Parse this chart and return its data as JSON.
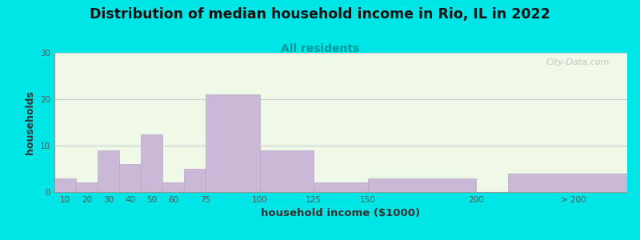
{
  "title": "Distribution of median household income in Rio, IL in 2022",
  "subtitle": "All residents",
  "xlabel": "household income ($1000)",
  "ylabel": "households",
  "bar_heights": [
    3,
    2,
    9,
    6,
    12.5,
    2,
    5,
    21,
    9,
    2,
    3,
    4
  ],
  "bar_widths": [
    10,
    10,
    10,
    10,
    10,
    15,
    15,
    25,
    25,
    25,
    50,
    60
  ],
  "bar_left": [
    5,
    15,
    25,
    35,
    45,
    55,
    65,
    75,
    100,
    125,
    150,
    215
  ],
  "bar_color": "#c9b8d8",
  "bar_edge_color": "#b8a8c8",
  "ylim": [
    0,
    30
  ],
  "yticks": [
    0,
    10,
    20,
    30
  ],
  "xtick_positions": [
    10,
    20,
    30,
    40,
    50,
    60,
    75,
    100,
    125,
    150,
    200,
    245
  ],
  "xtick_labels": [
    "10",
    "20",
    "30",
    "40",
    "50",
    "60",
    "75",
    "100",
    "125",
    "150",
    "200",
    "> 200"
  ],
  "bg_color": "#f0f8e8",
  "outer_bg": "#00e5e5",
  "watermark": "City-Data.com",
  "title_fontsize": 12.5,
  "subtitle_fontsize": 10,
  "subtitle_color": "#009999",
  "axis_label_color": "#333333",
  "tick_label_color": "#555555",
  "grid_color": "#cccccc",
  "xlim_left": 5,
  "xlim_right": 270
}
